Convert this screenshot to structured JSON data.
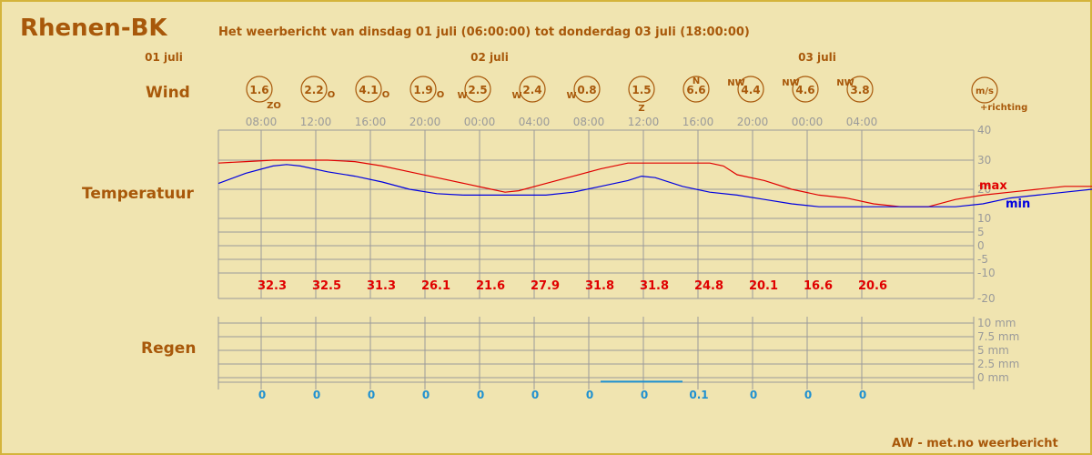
{
  "header": {
    "station": "Rhenen-BK",
    "subtitle": "Het weerbericht van dinsdag 01 juli (06:00:00) tot donderdag 03 juli (18:00:00)"
  },
  "footer": {
    "credit": "AW - met.no weerbericht"
  },
  "rows": {
    "wind": "Wind",
    "temperature": "Temperatuur",
    "rain": "Regen"
  },
  "colors": {
    "brown": "#a8580a",
    "grid": "#9a9a9a",
    "max_line": "#e00000",
    "min_line": "#0000e0",
    "rain": "#1e90d0",
    "background": "#f0e4b0"
  },
  "chart_data": [
    {
      "type": "line",
      "name": "temperature",
      "days": [
        {
          "label": "01 juli",
          "time": "06:00"
        },
        {
          "label": "02 juli",
          "time": "00:00"
        },
        {
          "label": "03 juli",
          "time": "00:00"
        }
      ],
      "x_tick_labels": [
        "08:00",
        "12:00",
        "16:00",
        "20:00",
        "00:00",
        "04:00",
        "08:00",
        "12:00",
        "16:00",
        "20:00",
        "00:00",
        "04:00"
      ],
      "x_range_hours": [
        0,
        55
      ],
      "ylim": [
        -20,
        40
      ],
      "y_ticks": [
        40,
        30,
        20,
        10,
        5,
        0,
        -5,
        -10,
        -20
      ],
      "legend": [
        "max",
        "min"
      ],
      "series": [
        {
          "name": "max",
          "color": "#e00000",
          "points": [
            [
              0,
              29
            ],
            [
              2,
              29.5
            ],
            [
              4,
              30
            ],
            [
              6,
              30
            ],
            [
              8,
              30
            ],
            [
              10,
              29.5
            ],
            [
              12,
              28
            ],
            [
              14,
              26
            ],
            [
              16,
              24
            ],
            [
              18,
              22
            ],
            [
              20,
              20
            ],
            [
              21,
              19
            ],
            [
              22,
              19.5
            ],
            [
              24,
              22
            ],
            [
              26,
              24.5
            ],
            [
              28,
              27
            ],
            [
              30,
              29
            ],
            [
              32,
              29
            ],
            [
              34,
              29
            ],
            [
              36,
              29
            ],
            [
              37,
              28
            ],
            [
              38,
              25
            ],
            [
              40,
              23
            ],
            [
              42,
              20
            ],
            [
              44,
              18
            ],
            [
              46,
              17
            ],
            [
              48,
              15
            ],
            [
              50,
              14
            ],
            [
              52,
              14
            ],
            [
              54,
              16.5
            ],
            [
              56,
              18
            ],
            [
              58,
              19
            ],
            [
              60,
              20
            ],
            [
              62,
              21
            ],
            [
              64,
              21
            ],
            [
              66,
              21
            ],
            [
              68,
              19
            ],
            [
              69,
              18
            ]
          ]
        },
        {
          "name": "min",
          "color": "#0000e0",
          "points": [
            [
              0,
              22
            ],
            [
              2,
              25.5
            ],
            [
              4,
              28
            ],
            [
              5,
              28.5
            ],
            [
              6,
              28
            ],
            [
              8,
              26
            ],
            [
              10,
              24.5
            ],
            [
              12,
              22.5
            ],
            [
              14,
              20
            ],
            [
              16,
              18.5
            ],
            [
              18,
              18
            ],
            [
              20,
              18
            ],
            [
              22,
              18
            ],
            [
              24,
              18
            ],
            [
              26,
              19
            ],
            [
              28,
              21
            ],
            [
              30,
              23
            ],
            [
              31,
              24.5
            ],
            [
              32,
              24
            ],
            [
              34,
              21
            ],
            [
              36,
              19
            ],
            [
              38,
              18
            ],
            [
              40,
              16.5
            ],
            [
              42,
              15
            ],
            [
              44,
              14
            ],
            [
              46,
              14
            ],
            [
              48,
              14
            ],
            [
              50,
              14
            ],
            [
              52,
              14
            ],
            [
              54,
              14
            ],
            [
              56,
              15
            ],
            [
              58,
              17
            ],
            [
              60,
              18
            ],
            [
              62,
              19
            ],
            [
              64,
              20
            ],
            [
              65,
              18
            ],
            [
              66,
              12
            ],
            [
              67,
              12
            ]
          ]
        }
      ],
      "max_values": [
        "32.3",
        "32.5",
        "31.3",
        "26.1",
        "21.6",
        "27.9",
        "31.8",
        "31.8",
        "24.8",
        "20.1",
        "16.6",
        "20.6"
      ]
    },
    {
      "type": "bar",
      "name": "rain",
      "ylim": [
        0,
        10
      ],
      "y_ticks": [
        "10 mm",
        "7.5 mm",
        "5 mm",
        "2.5 mm",
        "0 mm"
      ],
      "values": [
        "0",
        "0",
        "0",
        "0",
        "0",
        "0",
        "0",
        "0",
        "0.1",
        "0",
        "0",
        "0"
      ],
      "rain_segment": {
        "from_hour": 28,
        "to_hour": 34,
        "value": 0.1
      }
    }
  ],
  "wind": {
    "unit": "m/s",
    "unit_note": "+richting",
    "items": [
      {
        "speed": "1.6",
        "dir": "ZO"
      },
      {
        "speed": "2.2",
        "dir": "O"
      },
      {
        "speed": "4.1",
        "dir": "O"
      },
      {
        "speed": "1.9",
        "dir": "O"
      },
      {
        "speed": "2.5",
        "dir": "W"
      },
      {
        "speed": "2.4",
        "dir": "W"
      },
      {
        "speed": "0.8",
        "dir": "W"
      },
      {
        "speed": "1.5",
        "dir": "Z"
      },
      {
        "speed": "6.6",
        "dir": "N"
      },
      {
        "speed": "4.4",
        "dir": "NW"
      },
      {
        "speed": "4.6",
        "dir": "NW"
      },
      {
        "speed": "3.8",
        "dir": "NW"
      }
    ]
  }
}
